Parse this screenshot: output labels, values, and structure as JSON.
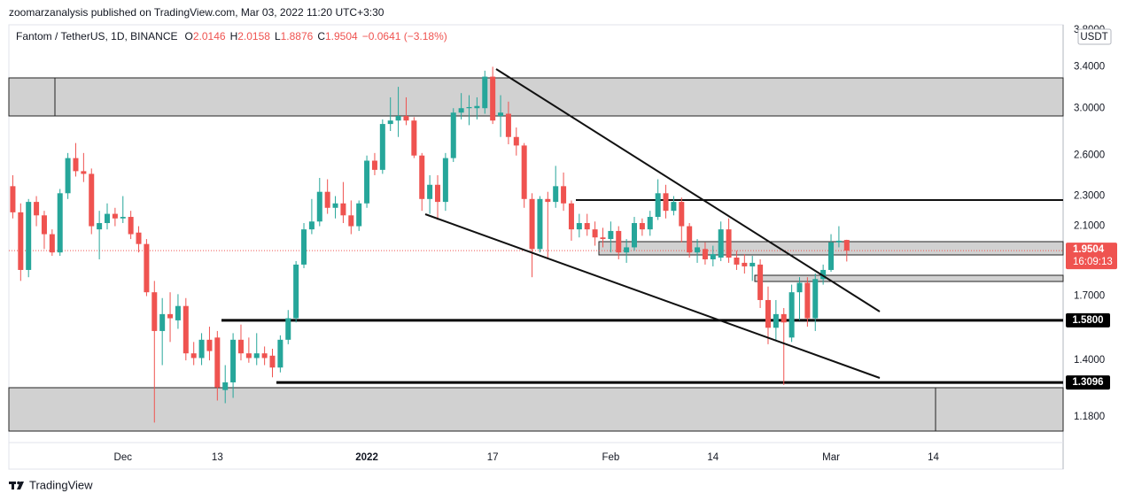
{
  "header": "zoomarzanalysis published on TradingView.com, Mar 03, 2022 11:20 UTC+3:30",
  "footer": "TradingView",
  "chart_data": {
    "type": "candlestick",
    "title": "Fantom / TetherUS, 1D, BINANCE",
    "legend_keys": [
      "O",
      "H",
      "L",
      "C"
    ],
    "change": "−0.0641 (−3.18%)",
    "currency": "USDT",
    "countdown": "16:09:13",
    "up_color": "#26a69a",
    "down_color": "#ef5350",
    "log_scale": true,
    "grid": false,
    "xlim": [
      -0.5,
      133.5
    ],
    "ylim": [
      1.092,
      3.86
    ],
    "xticks": [
      {
        "value": 14,
        "label": "Dec"
      },
      {
        "value": 26,
        "label": "13"
      },
      {
        "value": 45,
        "label": "2022"
      },
      {
        "value": 61,
        "label": "17"
      },
      {
        "value": 76,
        "label": "Feb"
      },
      {
        "value": 89,
        "label": "14"
      },
      {
        "value": 104,
        "label": "Mar"
      },
      {
        "value": 117,
        "label": "14"
      }
    ],
    "yticks": [
      {
        "value": 1.18,
        "label": "1.1800"
      },
      {
        "value": 1.4,
        "label": "1.4000"
      },
      {
        "value": 1.7,
        "label": "1.7000"
      },
      {
        "value": 2.1,
        "label": "2.1000"
      },
      {
        "value": 2.3,
        "label": "2.3000"
      },
      {
        "value": 2.6,
        "label": "2.6000"
      },
      {
        "value": 3,
        "label": "3.0000"
      },
      {
        "value": 3.4,
        "label": "3.4000"
      },
      {
        "value": 3.8,
        "label": "3.8000"
      }
    ],
    "price_levels": [
      {
        "value": 1.58,
        "label": "1.5800"
      },
      {
        "value": 1.3096,
        "label": "1.3096"
      }
    ],
    "open": [
      2.37,
      2.19,
      1.84,
      2.26,
      2.17,
      2.05,
      1.94,
      2.32,
      2.58,
      2.48,
      2.46,
      2.08,
      2.12,
      2.18,
      2.15,
      2.16,
      2.06,
      1.99,
      1.72,
      1.53,
      1.61,
      1.58,
      1.65,
      1.43,
      1.41,
      1.49,
      1.5,
      1.28,
      1.31,
      1.49,
      1.43,
      1.41,
      1.43,
      1.42,
      1.37,
      1.49,
      1.59,
      1.87,
      2.08,
      2.13,
      2.33,
      2.22,
      2.25,
      2.17,
      2.1,
      2.25,
      2.56,
      2.49,
      2.86,
      2.89,
      2.93,
      2.89,
      2.6,
      2.28,
      2.38,
      2.26,
      2.58,
      2.96,
      3,
      3,
      3,
      3.3,
      2.93,
      2.95,
      2.75,
      2.68,
      2.28,
      1.96,
      2.28,
      2.26,
      2.37,
      2.25,
      2.08,
      2.12,
      2.08,
      2.03,
      2.02,
      2.07,
      1.94,
      1.97,
      2.12,
      2.08,
      2.16,
      2.32,
      2.2,
      2.26,
      2.1,
      1.94,
      1.96,
      1.9,
      1.91,
      2.08,
      1.91,
      1.88,
      1.86,
      1.87,
      1.68,
      1.545,
      1.61,
      1.5,
      1.72,
      1.77,
      1.59,
      1.79,
      1.84,
      2,
      2.0146
    ],
    "high": [
      2.45,
      2.25,
      2.28,
      2.3,
      2.2,
      2.08,
      2.35,
      2.62,
      2.7,
      2.62,
      2.5,
      2.2,
      2.25,
      2.22,
      2.3,
      2.2,
      2.1,
      2.02,
      1.78,
      1.69,
      1.72,
      1.71,
      1.69,
      1.48,
      1.52,
      1.55,
      1.53,
      1.38,
      1.52,
      1.56,
      1.5,
      1.52,
      1.46,
      1.45,
      1.51,
      1.63,
      1.89,
      2.12,
      2.28,
      2.43,
      2.42,
      2.3,
      2.4,
      2.27,
      2.27,
      2.6,
      2.62,
      2.9,
      3.1,
      3.2,
      3.1,
      2.92,
      2.62,
      2.45,
      2.45,
      2.62,
      3,
      3.14,
      3.12,
      3.1,
      3.36,
      3.4,
      3.12,
      3.06,
      2.83,
      2.7,
      2.32,
      2.3,
      2.33,
      2.52,
      2.47,
      2.27,
      2.18,
      2.18,
      2.13,
      2.09,
      2.13,
      2.1,
      2.02,
      2.16,
      2.15,
      2.2,
      2.42,
      2.38,
      2.3,
      2.29,
      2.12,
      2.02,
      2,
      1.98,
      2.13,
      2.15,
      1.95,
      1.93,
      1.92,
      1.9,
      1.75,
      1.68,
      1.64,
      1.76,
      1.8,
      1.8,
      1.82,
      1.87,
      2.05,
      2.1,
      2.0158
    ],
    "low": [
      2.15,
      1.78,
      1.8,
      2.1,
      1.96,
      1.92,
      1.92,
      2.28,
      2.44,
      2.4,
      2.05,
      1.9,
      2.08,
      2.1,
      2.12,
      2.02,
      1.94,
      1.7,
      1.16,
      1.38,
      1.48,
      1.54,
      1.4,
      1.38,
      1.38,
      1.4,
      1.24,
      1.23,
      1.25,
      1.4,
      1.39,
      1.38,
      1.38,
      1.33,
      1.35,
      1.47,
      1.57,
      1.85,
      2.05,
      2.1,
      2.18,
      2.15,
      2.12,
      2.05,
      2.07,
      2.22,
      2.45,
      2.46,
      2.8,
      2.75,
      2.85,
      2.58,
      2.2,
      2.18,
      2.14,
      2.2,
      2.55,
      2.9,
      2.85,
      2.9,
      2.95,
      2.86,
      2.75,
      2.69,
      2.6,
      2.22,
      1.8,
      1.94,
      1.9,
      2.22,
      2.2,
      2.01,
      2.03,
      2.04,
      1.98,
      1.97,
      1.94,
      1.9,
      1.88,
      1.95,
      2.04,
      2.04,
      2.14,
      2.15,
      2.17,
      2,
      1.91,
      1.88,
      1.87,
      1.86,
      1.89,
      1.88,
      1.84,
      1.82,
      1.78,
      1.64,
      1.47,
      1.49,
      1.3,
      1.48,
      1.58,
      1.55,
      1.53,
      1.76,
      1.83,
      1.97,
      1.8876
    ],
    "close": [
      2.19,
      1.84,
      2.26,
      2.17,
      2.05,
      1.94,
      2.32,
      2.58,
      2.48,
      2.46,
      2.1,
      2.12,
      2.18,
      2.15,
      2.16,
      2.05,
      1.99,
      1.72,
      1.53,
      1.61,
      1.59,
      1.65,
      1.43,
      1.41,
      1.49,
      1.44,
      1.29,
      1.31,
      1.49,
      1.43,
      1.41,
      1.43,
      1.41,
      1.37,
      1.49,
      1.59,
      1.87,
      2.08,
      2.13,
      2.33,
      2.22,
      2.25,
      2.17,
      2.1,
      2.25,
      2.56,
      2.49,
      2.86,
      2.89,
      2.93,
      2.89,
      2.6,
      2.28,
      2.38,
      2.26,
      2.58,
      2.96,
      3,
      3.01,
      3.02,
      3.3,
      2.89,
      2.96,
      2.75,
      2.68,
      2.28,
      1.96,
      2.28,
      2.26,
      2.37,
      2.25,
      2.08,
      2.12,
      2.08,
      2.03,
      2.02,
      2.07,
      1.94,
      1.97,
      2.12,
      2.08,
      2.16,
      2.32,
      2.2,
      2.26,
      2.1,
      1.94,
      1.97,
      1.9,
      1.93,
      2.08,
      1.91,
      1.87,
      1.86,
      1.88,
      1.68,
      1.545,
      1.61,
      1.57,
      1.72,
      1.77,
      1.59,
      1.79,
      1.84,
      2,
      2.01,
      1.9504
    ]
  }
}
